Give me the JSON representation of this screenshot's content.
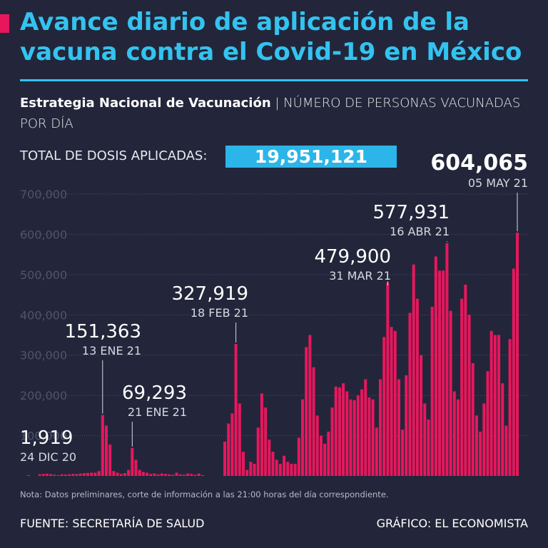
{
  "chart_data": {
    "type": "bar",
    "title": [
      "Avance diario de aplicación de la",
      "vacuna contra el Covid-19 en México"
    ],
    "subtitle_bold": "Estrategia Nacional de Vacunación",
    "subtitle": "| NÚMERO DE PERSONAS VACUNADAS POR DÍA",
    "total_label": "TOTAL DE DOSIS APLICADAS:",
    "total_value": "19,951,121",
    "note": "Nota: Datos preliminares, corte de información a las 21:00 horas del día correspondiente.",
    "source": "FUENTE: SECRETARÍA DE SALUD",
    "credit": "GRÁFICO: EL ECONOMISTA",
    "color": "#e8175d",
    "grid": true,
    "ylim": [
      0,
      700000
    ],
    "yticks": [
      {
        "value": 100000,
        "label": "100,000"
      },
      {
        "value": 200000,
        "label": "200,000"
      },
      {
        "value": 300000,
        "label": "300,000"
      },
      {
        "value": 400000,
        "label": "400,000"
      },
      {
        "value": 500000,
        "label": "500,000"
      },
      {
        "value": 600000,
        "label": "600,000"
      },
      {
        "value": 700000,
        "label": "700,000"
      }
    ],
    "categories": [
      "24 DIC 20",
      null,
      null,
      null,
      null,
      null,
      null,
      null,
      null,
      null,
      null,
      null,
      null,
      null,
      null,
      null,
      null,
      null,
      null,
      null,
      "13 ENE 21",
      null,
      null,
      null,
      null,
      null,
      null,
      null,
      "21 ENE 21",
      null,
      null,
      null,
      null,
      null,
      null,
      null,
      null,
      null,
      null,
      null,
      null,
      null,
      null,
      null,
      null,
      null,
      null,
      null,
      null,
      null,
      null,
      null,
      null,
      null,
      null,
      null,
      "18 FEB 21",
      null,
      null,
      null,
      null,
      null,
      null,
      null,
      null,
      null,
      null,
      null,
      null,
      null,
      null,
      null,
      null,
      null,
      null,
      null,
      null,
      null,
      null,
      null,
      null,
      null,
      null,
      null,
      null,
      null,
      null,
      null,
      null,
      null,
      null,
      null,
      null,
      null,
      null,
      null,
      null,
      "31 MAR 21",
      null,
      null,
      null,
      null,
      null,
      null,
      null,
      null,
      null,
      null,
      null,
      null,
      null,
      null,
      null,
      "16 ABR 21",
      null,
      null,
      null,
      null,
      null,
      null,
      null,
      null,
      null,
      null,
      null,
      null,
      null,
      null,
      null,
      null,
      null,
      null,
      "05 MAY 21"
    ],
    "values": [
      1919,
      0,
      0,
      4000,
      5000,
      5500,
      4500,
      3000,
      2000,
      4000,
      3500,
      4000,
      5000,
      4500,
      6000,
      7000,
      7500,
      8000,
      8000,
      12000,
      151363,
      125000,
      78000,
      12000,
      8000,
      5000,
      7000,
      15000,
      69293,
      40000,
      15000,
      10000,
      8000,
      5000,
      6000,
      4000,
      6000,
      5000,
      4000,
      3000,
      8000,
      4000,
      3000,
      6000,
      5000,
      3000,
      6000,
      2000,
      null,
      null,
      null,
      null,
      null,
      85000,
      130000,
      155000,
      327919,
      180000,
      60000,
      15000,
      35000,
      30000,
      120000,
      205000,
      170000,
      90000,
      60000,
      40000,
      30000,
      50000,
      35000,
      30000,
      30000,
      95000,
      190000,
      320000,
      350000,
      270000,
      150000,
      100000,
      80000,
      110000,
      170000,
      222000,
      220000,
      230000,
      210000,
      190000,
      188000,
      200000,
      215000,
      240000,
      195000,
      190000,
      120000,
      240000,
      345000,
      479900,
      370000,
      360000,
      240000,
      115000,
      250000,
      405000,
      525000,
      440000,
      300000,
      180000,
      140000,
      420000,
      545000,
      510000,
      510000,
      577931,
      410000,
      210000,
      190000,
      440000,
      475000,
      400000,
      280000,
      150000,
      110000,
      180000,
      260000,
      360000,
      350000,
      350000,
      230000,
      125000,
      340000,
      515000,
      604065
    ],
    "value_labels": [
      "1,919",
      null,
      null,
      null,
      null,
      null,
      null,
      null,
      null,
      null,
      null,
      null,
      null,
      null,
      null,
      null,
      null,
      null,
      null,
      null,
      "151,363",
      null,
      null,
      null,
      null,
      null,
      null,
      null,
      "69,293",
      null,
      null,
      null,
      null,
      null,
      null,
      null,
      null,
      null,
      null,
      null,
      null,
      null,
      null,
      null,
      null,
      null,
      null,
      null,
      null,
      null,
      null,
      null,
      null,
      null,
      null,
      null,
      "327,919",
      null,
      null,
      null,
      null,
      null,
      null,
      null,
      null,
      null,
      null,
      null,
      null,
      null,
      null,
      null,
      null,
      null,
      null,
      null,
      null,
      null,
      null,
      null,
      null,
      null,
      null,
      null,
      null,
      null,
      null,
      null,
      null,
      null,
      null,
      null,
      null,
      null,
      null,
      null,
      null,
      "479,900",
      null,
      null,
      null,
      null,
      null,
      null,
      null,
      null,
      null,
      null,
      null,
      null,
      null,
      null,
      null,
      "577,931",
      null,
      null,
      null,
      null,
      null,
      null,
      null,
      null,
      null,
      null,
      null,
      null,
      null,
      null,
      null,
      null,
      null,
      null,
      "604,065"
    ]
  }
}
